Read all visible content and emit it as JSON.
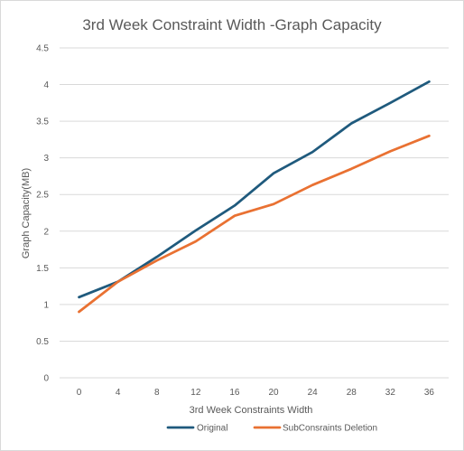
{
  "chart_data": {
    "type": "line",
    "title": "3rd Week Constraint Width -Graph Capacity",
    "xlabel": "3rd Week Constraints Width",
    "ylabel": "Graph Capacity(MB)",
    "categories": [
      "0",
      "4",
      "8",
      "12",
      "16",
      "20",
      "24",
      "28",
      "32",
      "36"
    ],
    "x": [
      0,
      4,
      8,
      12,
      16,
      20,
      24,
      28,
      32,
      36
    ],
    "ylim": [
      0,
      4.5
    ],
    "yticks": [
      "0",
      "0.5",
      "1",
      "1.5",
      "2",
      "2.5",
      "3",
      "3.5",
      "4",
      "4.5"
    ],
    "grid": "horizontal",
    "legend_position": "bottom",
    "series": [
      {
        "name": "Original",
        "color": "#1f5a7d",
        "values": [
          1.1,
          1.31,
          1.65,
          2.01,
          2.35,
          2.79,
          3.08,
          3.47,
          3.75,
          4.04
        ]
      },
      {
        "name": "SubConsraints Deletion",
        "color": "#e97132",
        "values": [
          0.9,
          1.31,
          1.6,
          1.86,
          2.21,
          2.37,
          2.63,
          2.85,
          3.09,
          3.3
        ]
      }
    ]
  }
}
